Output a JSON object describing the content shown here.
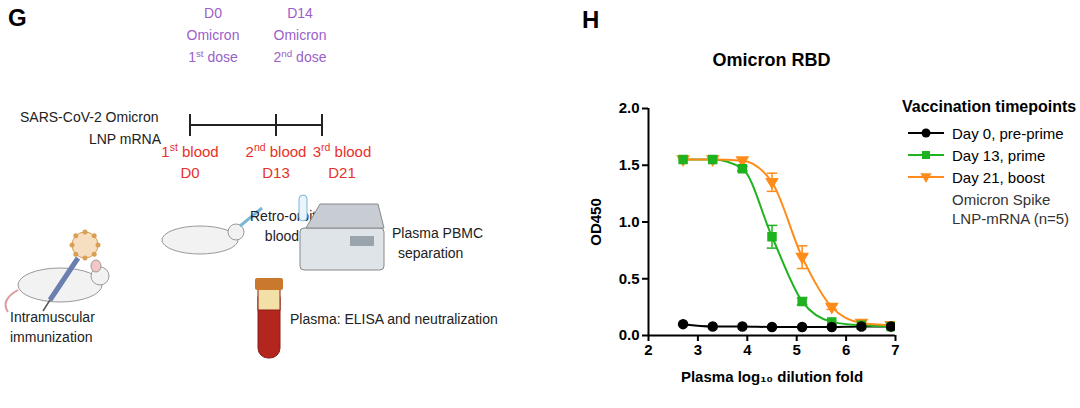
{
  "diagram": {
    "panel_label": "G",
    "vaccine": [
      "SARS-CoV-2 Omicron",
      "LNP mRNA"
    ],
    "doses": [
      {
        "day": "D0",
        "lines": [
          "Omicron",
          "1st dose"
        ]
      },
      {
        "day": "D14",
        "lines": [
          "Omicron",
          "2nd dose"
        ]
      }
    ],
    "bleeds": [
      {
        "label": "1st blood",
        "day": "D0"
      },
      {
        "label": "2nd blood",
        "day": "D13"
      },
      {
        "label": "3rd blood",
        "day": "D21"
      }
    ],
    "immunization": [
      "Intramuscular",
      "immunization"
    ],
    "bleeding": [
      "Retro-orbital",
      "blood"
    ],
    "separation": [
      "Plasma PBMC",
      "separation"
    ],
    "plasma": [
      "Plasma: ELISA and neutralization"
    ]
  },
  "chart_data": {
    "type": "line",
    "panel_label": "H",
    "title": "Omicron RBD",
    "x_label": "Plasma log₁₀ dilution fold",
    "y_label": "OD450",
    "xlim": [
      2,
      7
    ],
    "xticks": [
      2,
      3,
      4,
      5,
      6,
      7
    ],
    "ylim": [
      0,
      2
    ],
    "yticks": [
      {
        "value": 0,
        "label": "0.0"
      },
      {
        "value": 0.5,
        "label": "0.5"
      },
      {
        "value": 1,
        "label": "1.0"
      },
      {
        "value": 1.5,
        "label": "1.5"
      },
      {
        "value": 2,
        "label": "2.0"
      }
    ],
    "legend": "right",
    "legend_title": "Vaccination timepoints",
    "legend_note": [
      "Omicron Spike",
      "LNP-mRNA (n=5)"
    ],
    "x": [
      2.7,
      3.3,
      3.9,
      4.5,
      5.11,
      5.71,
      6.31,
      6.91
    ],
    "series": [
      {
        "name": "Day 0, pre-prime",
        "color": "#000000",
        "marker": "circle",
        "values": [
          0.1,
          0.08,
          0.08,
          0.075,
          0.075,
          0.075,
          0.08,
          0.08
        ],
        "errors": [
          null,
          null,
          null,
          null,
          null,
          null,
          null,
          null
        ]
      },
      {
        "name": "Day 13, prime",
        "color": "#1fb21f",
        "marker": "square",
        "values": [
          1.55,
          1.55,
          1.47,
          0.87,
          0.3,
          0.12,
          0.09,
          0.08
        ],
        "errors": [
          null,
          null,
          0.02,
          0.1,
          0.03,
          null,
          null,
          null
        ]
      },
      {
        "name": "Day 21, boost",
        "color": "#ff8c1a",
        "marker": "triangle-down",
        "values": [
          1.55,
          1.55,
          1.54,
          1.35,
          0.69,
          0.25,
          0.11,
          0.09
        ],
        "errors": [
          null,
          null,
          null,
          0.08,
          0.1,
          0.02,
          null,
          null
        ]
      }
    ]
  }
}
